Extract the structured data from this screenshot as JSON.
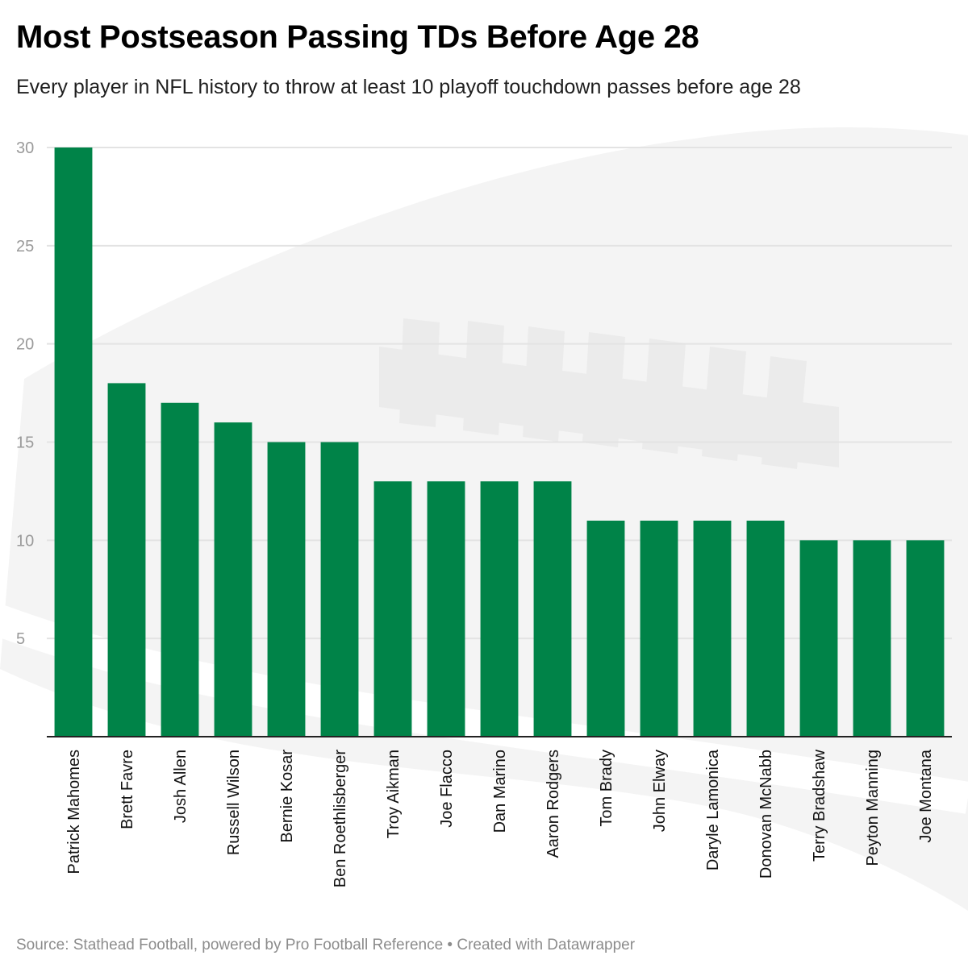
{
  "title": "Most Postseason Passing TDs Before Age 28",
  "subtitle": "Every player in NFL history to throw at least 10 playoff touchdown passes before age 28",
  "footer": {
    "source": "Source: Stathead Football, powered by Pro Football Reference • Created with Datawrapper"
  },
  "colors": {
    "bar": "#008348",
    "gridline": "#e3e3e3",
    "baseline": "#222222",
    "background_art": "#f2f2f2"
  },
  "chart_data": {
    "type": "bar",
    "title": "Most Postseason Passing TDs Before Age 28",
    "subtitle": "Every player in NFL history to throw at least 10 playoff touchdown passes before age 28",
    "xlabel": "",
    "ylabel": "",
    "ylim": [
      0,
      30
    ],
    "yticks": [
      5,
      10,
      15,
      20,
      25,
      30
    ],
    "grid": true,
    "legend": "none",
    "categories": [
      "Patrick Mahomes",
      "Brett Favre",
      "Josh Allen",
      "Russell Wilson",
      "Bernie Kosar",
      "Ben Roethlisberger",
      "Troy Aikman",
      "Joe Flacco",
      "Dan Marino",
      "Aaron Rodgers",
      "Tom Brady",
      "John Elway",
      "Daryle Lamonica",
      "Donovan McNabb",
      "Terry Bradshaw",
      "Peyton Manning",
      "Joe Montana"
    ],
    "values": [
      30,
      18,
      17,
      16,
      15,
      15,
      13,
      13,
      13,
      13,
      11,
      11,
      11,
      11,
      10,
      10,
      10
    ]
  }
}
